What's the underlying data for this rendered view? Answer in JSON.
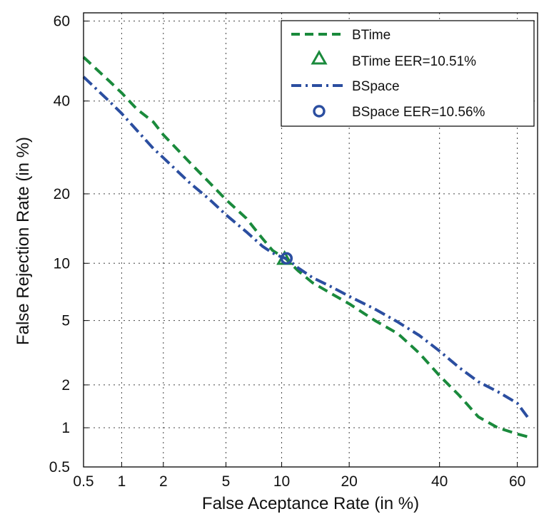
{
  "chart_data": {
    "type": "line",
    "title": "",
    "xlabel": "False Aceptance Rate (in %)",
    "ylabel": "False Rejection Rate (in %)",
    "xscale": "probit",
    "yscale": "probit",
    "xlim": [
      0.5,
      65
    ],
    "ylim": [
      0.5,
      62
    ],
    "xticks": [
      0.5,
      1,
      2,
      5,
      10,
      20,
      40,
      60
    ],
    "xtick_labels": [
      "0.5",
      "1",
      "2",
      "5",
      "10",
      "20",
      "40",
      "60"
    ],
    "yticks": [
      0.5,
      1,
      2,
      5,
      10,
      20,
      40,
      60
    ],
    "ytick_labels": [
      "0.5",
      "1",
      "2",
      "5",
      "10",
      "20",
      "40",
      "60"
    ],
    "grid": true,
    "legend_position": "top-right",
    "series": [
      {
        "name": "BTime",
        "color": "#1a8a3c",
        "style": "dashed",
        "x": [
          0.5,
          0.8,
          1.0,
          1.3,
          1.7,
          2.0,
          3.0,
          4.0,
          5.0,
          6.5,
          8.0,
          9.0,
          10.0,
          10.5,
          12.0,
          14.0,
          17.0,
          20.0,
          25.0,
          30.0,
          35.0,
          40.0,
          45.0,
          50.0,
          55.0,
          60.0,
          63.0
        ],
        "y": [
          51,
          45,
          42,
          38,
          35,
          32,
          26,
          22,
          19,
          16,
          13,
          11.5,
          10.8,
          10.5,
          9.2,
          8.0,
          7.0,
          6.2,
          5.0,
          4.2,
          3.2,
          2.3,
          1.7,
          1.2,
          1.0,
          0.9,
          0.85
        ]
      },
      {
        "name": "BSpace",
        "color": "#2b4ea0",
        "style": "dashdot",
        "x": [
          0.5,
          0.8,
          1.0,
          1.3,
          1.7,
          2.0,
          3.0,
          4.0,
          5.0,
          6.5,
          8.0,
          9.0,
          10.0,
          10.56,
          12.0,
          14.0,
          17.0,
          20.0,
          25.0,
          30.0,
          35.0,
          40.0,
          45.0,
          50.0,
          55.0,
          60.0,
          63.0
        ],
        "y": [
          46,
          40,
          37,
          33,
          29,
          27,
          22,
          19,
          16.5,
          14,
          12,
          11.2,
          10.7,
          10.56,
          9.5,
          8.5,
          7.6,
          6.8,
          5.8,
          4.9,
          4.1,
          3.3,
          2.6,
          2.1,
          1.8,
          1.5,
          1.15
        ]
      }
    ],
    "markers": [
      {
        "name": "BTime EER=10.51%",
        "x": 10.51,
        "y": 10.51,
        "shape": "triangle",
        "color": "#1a8a3c"
      },
      {
        "name": "BSpace EER=10.56%",
        "x": 10.56,
        "y": 10.56,
        "shape": "circle",
        "color": "#2b4ea0"
      }
    ],
    "legend": [
      "BTime",
      "BTime EER=10.51%",
      "BSpace",
      "BSpace EER=10.56%"
    ]
  }
}
